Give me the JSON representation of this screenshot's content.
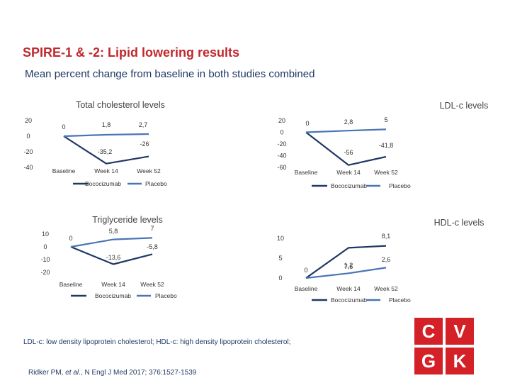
{
  "header": {
    "title": "SPIRE-1 & -2: Lipid lowering results",
    "subtitle": "Mean percent change from baseline in both studies combined"
  },
  "chart_data": [
    {
      "type": "line",
      "title": "Total cholesterol levels",
      "categories": [
        "Baseline",
        "Week 14",
        "Week 52"
      ],
      "series": [
        {
          "name": "Bococizumab",
          "color": "#1f3864",
          "values": [
            0,
            -35.2,
            -26
          ]
        },
        {
          "name": "Placebo",
          "color": "#4a75b5",
          "values": [
            0,
            1.8,
            2.7
          ]
        }
      ],
      "labels": [
        {
          "text": "0"
        },
        {
          "text": "-35,2"
        },
        {
          "text": "-26"
        },
        {
          "text": "1,8"
        },
        {
          "text": "2,7"
        }
      ],
      "yticks": [
        "20",
        "0",
        "-20",
        "-40"
      ],
      "ylim": [
        -40,
        20
      ],
      "legend": [
        "Bococizumab",
        "Placebo"
      ]
    },
    {
      "type": "line",
      "title": "LDL-c levels",
      "categories": [
        "Baseline",
        "Week 14",
        "Week 52"
      ],
      "series": [
        {
          "name": "Bococizumab",
          "color": "#1f3864",
          "values": [
            0,
            -56,
            -41.8
          ]
        },
        {
          "name": "Placebo",
          "color": "#4a75b5",
          "values": [
            0,
            2.8,
            5
          ]
        }
      ],
      "labels": [
        {
          "text": "0"
        },
        {
          "text": "-56"
        },
        {
          "text": "-41,8"
        },
        {
          "text": "2,8"
        },
        {
          "text": "5"
        }
      ],
      "yticks": [
        "20",
        "0",
        "-20",
        "-40",
        "-60"
      ],
      "ylim": [
        -60,
        20
      ],
      "legend": [
        "Bococizumab",
        "Placebo"
      ]
    },
    {
      "type": "line",
      "title": "Triglyceride levels",
      "categories": [
        "Baseline",
        "Week 14",
        "Week 52"
      ],
      "series": [
        {
          "name": "Bococizumab",
          "color": "#1f3864",
          "values": [
            0,
            -13.6,
            -5.8
          ]
        },
        {
          "name": "Placebo",
          "color": "#4a75b5",
          "values": [
            0,
            5.8,
            7
          ]
        }
      ],
      "labels": [
        {
          "text": "0"
        },
        {
          "text": "-13,6"
        },
        {
          "text": "-5,8"
        },
        {
          "text": "5,8"
        },
        {
          "text": "7"
        }
      ],
      "yticks": [
        "10",
        "0",
        "-10",
        "-20"
      ],
      "ylim": [
        -20,
        10
      ],
      "legend": [
        "Bococizumab",
        "Placebo"
      ]
    },
    {
      "type": "line",
      "title": "HDL-c levels",
      "categories": [
        "Baseline",
        "Week 14",
        "Week 52"
      ],
      "series": [
        {
          "name": "Bococizumab",
          "color": "#1f3864",
          "values": [
            0,
            7.6,
            8.1
          ]
        },
        {
          "name": "Placebo",
          "color": "#4a75b5",
          "values": [
            0,
            1.2,
            2.6
          ]
        }
      ],
      "labels": [
        {
          "text": "0"
        },
        {
          "text": "7,6"
        },
        {
          "text": "8,1"
        },
        {
          "text": "1,2"
        },
        {
          "text": "2,6"
        }
      ],
      "yticks": [
        "10",
        "5",
        "0"
      ],
      "ylim": [
        0,
        10
      ],
      "legend": [
        "Bococizumab",
        "Placebo"
      ]
    }
  ],
  "footnote": "LDL-c: low density lipoprotein cholesterol; HDL-c: high density lipoprotein cholesterol;",
  "citation": {
    "authors": "Ridker PM, ",
    "etal": "et al",
    "journal": "., N Engl J Med 2017; 376:1527-1539"
  },
  "logo": {
    "letters": [
      "C",
      "V",
      "G",
      "K"
    ],
    "color": "#d42027"
  }
}
